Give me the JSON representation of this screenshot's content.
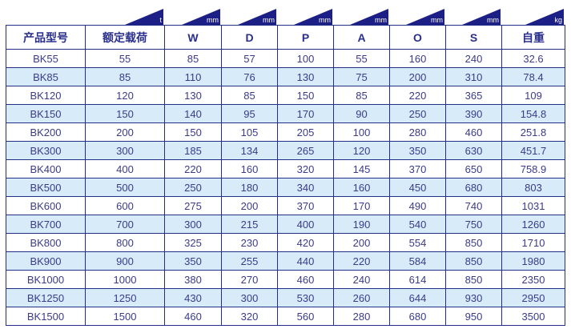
{
  "units": [
    "",
    "t",
    "mm",
    "mm",
    "mm",
    "mm",
    "mm",
    "mm",
    "kg"
  ],
  "headers": [
    "产品型号",
    "额定载荷",
    "W",
    "D",
    "P",
    "A",
    "O",
    "S",
    "自重"
  ],
  "rows": [
    [
      "BK55",
      "55",
      "85",
      "57",
      "100",
      "55",
      "160",
      "240",
      "32.6"
    ],
    [
      "BK85",
      "85",
      "110",
      "76",
      "130",
      "75",
      "200",
      "310",
      "78.4"
    ],
    [
      "BK120",
      "120",
      "130",
      "85",
      "150",
      "85",
      "220",
      "365",
      "109"
    ],
    [
      "BK150",
      "150",
      "140",
      "95",
      "170",
      "90",
      "250",
      "390",
      "154.8"
    ],
    [
      "BK200",
      "200",
      "150",
      "105",
      "205",
      "100",
      "280",
      "460",
      "251.8"
    ],
    [
      "BK300",
      "300",
      "185",
      "134",
      "265",
      "120",
      "350",
      "630",
      "451.7"
    ],
    [
      "BK400",
      "400",
      "220",
      "160",
      "320",
      "145",
      "370",
      "650",
      "758.9"
    ],
    [
      "BK500",
      "500",
      "250",
      "180",
      "340",
      "160",
      "450",
      "680",
      "803"
    ],
    [
      "BK600",
      "600",
      "275",
      "200",
      "370",
      "170",
      "490",
      "740",
      "1031"
    ],
    [
      "BK700",
      "700",
      "300",
      "215",
      "400",
      "190",
      "540",
      "750",
      "1260"
    ],
    [
      "BK800",
      "800",
      "325",
      "230",
      "420",
      "200",
      "554",
      "850",
      "1710"
    ],
    [
      "BK900",
      "900",
      "350",
      "255",
      "440",
      "220",
      "584",
      "850",
      "1980"
    ],
    [
      "BK1000",
      "1000",
      "380",
      "270",
      "460",
      "240",
      "614",
      "850",
      "2350"
    ],
    [
      "BK1250",
      "1250",
      "430",
      "300",
      "530",
      "260",
      "644",
      "930",
      "2950"
    ],
    [
      "BK1500",
      "1500",
      "460",
      "320",
      "560",
      "280",
      "680",
      "950",
      "3500"
    ]
  ],
  "colors": {
    "border": "#23308a",
    "header_text": "#2a2f8c",
    "alt_row": "#d7ecf8",
    "unit_tab": "#1c1f85"
  }
}
